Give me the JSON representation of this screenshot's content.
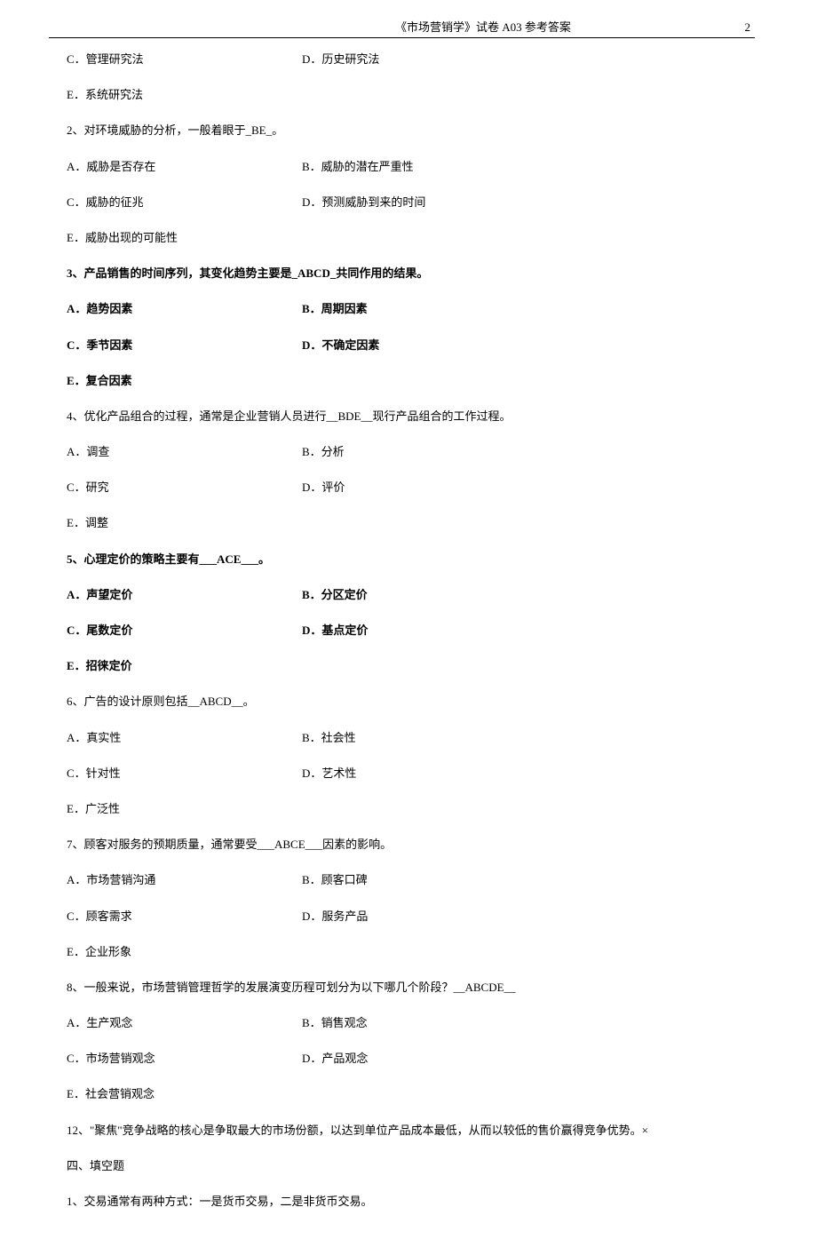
{
  "header": {
    "title": "《市场营销学》试卷 A03 参考答案",
    "page_number": "2"
  },
  "content": {
    "q1_tail": {
      "optC": "C．管理研究法",
      "optD": "D．历史研究法",
      "optE": "E．系统研究法"
    },
    "q2": {
      "stem": "2、对环境威胁的分析，一般着眼于_BE_。",
      "optA": "A．威胁是否存在",
      "optB": "B．威胁的潜在严重性",
      "optC": "C．威胁的征兆",
      "optD": "D．预测威胁到来的时间",
      "optE": "E．威胁出现的可能性"
    },
    "q3": {
      "stem": "3、产品销售的时间序列，其变化趋势主要是_ABCD_共同作用的结果。",
      "optA": "A．趋势因素",
      "optB": "B．周期因素",
      "optC": "C．季节因素",
      "optD": "D．不确定因素",
      "optE": "E．复合因素"
    },
    "q4": {
      "stem": "4、优化产品组合的过程，通常是企业营销人员进行__BDE__现行产品组合的工作过程。",
      "optA": "A．调查",
      "optB": "B．分析",
      "optC": "C．研究",
      "optD": "D．评价",
      "optE": "E．调整"
    },
    "q5": {
      "stem": "5、心理定价的策略主要有___ACE___。",
      "optA": "A．声望定价",
      "optB": "B．分区定价",
      "optC": "C．尾数定价",
      "optD": "D．基点定价",
      "optE": "E．招徕定价"
    },
    "q6": {
      "stem": "6、广告的设计原则包括__ABCD__。",
      "optA": "A．真实性",
      "optB": "B．社会性",
      "optC": "C．针对性",
      "optD": "D．艺术性",
      "optE": "E．广泛性"
    },
    "q7": {
      "stem": "7、顾客对服务的预期质量，通常要受___ABCE___因素的影响。",
      "optA": "A．市场营销沟通",
      "optB": "B．顾客口碑",
      "optC": "C．顾客需求",
      "optD": "D．服务产品",
      "optE": "E．企业形象"
    },
    "q8": {
      "stem": "8、一般来说，市场营销管理哲学的发展演变历程可划分为以下哪几个阶段？__ABCDE__",
      "optA": "A．生产观念",
      "optB": "B．销售观念",
      "optC": "C．市场营销观念",
      "optD": "D．产品观念",
      "optE": "E．社会营销观念"
    },
    "q12": "12、\"聚焦\"竞争战略的核心是争取最大的市场份额，以达到单位产品成本最低，从而以较低的售价赢得竞争优势。×",
    "section4_title": "四、填空题",
    "fill1": "1、交易通常有两种方式：一是货币交易，二是非货币交易。"
  }
}
